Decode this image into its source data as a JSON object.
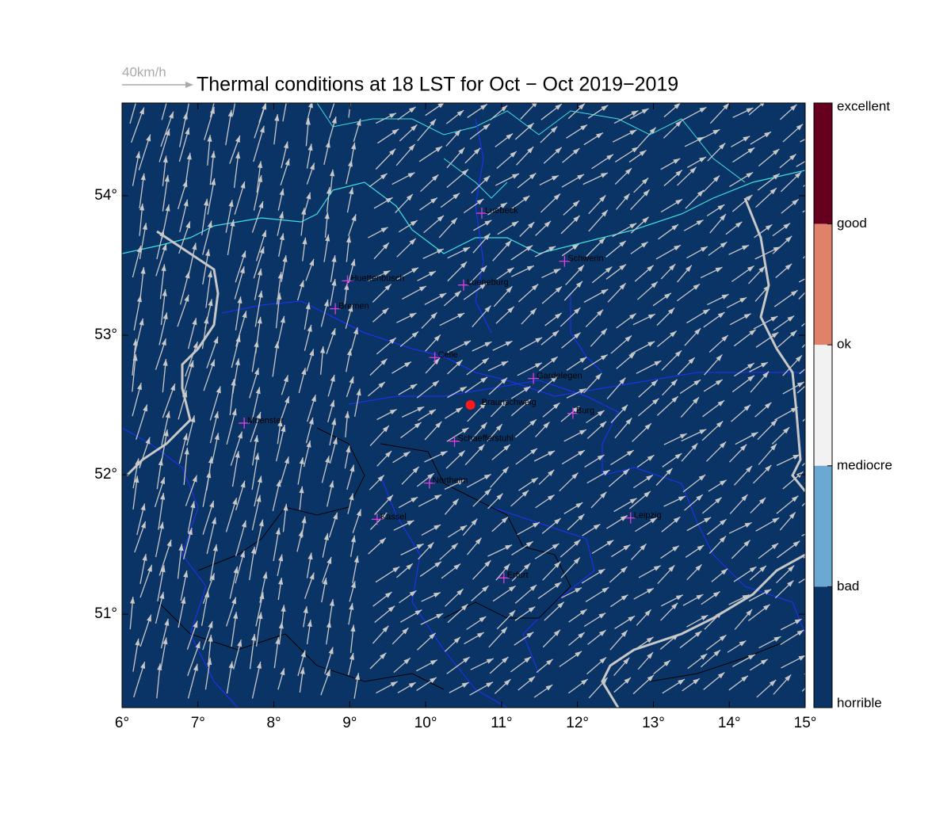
{
  "title": "Thermal conditions at 18 LST for Oct − Oct  2019−2019",
  "wind_scale": {
    "label": "40km/h"
  },
  "map": {
    "background": "#0b3466",
    "xlim": [
      6,
      15
    ],
    "ylim": [
      50.33,
      54.665
    ],
    "xticks": [
      {
        "value": 6,
        "label": "6°"
      },
      {
        "value": 7,
        "label": "7°"
      },
      {
        "value": 8,
        "label": "8°"
      },
      {
        "value": 9,
        "label": "9°"
      },
      {
        "value": 10,
        "label": "10°"
      },
      {
        "value": 11,
        "label": "11°"
      },
      {
        "value": 12,
        "label": "12°"
      },
      {
        "value": 13,
        "label": "13°"
      },
      {
        "value": 14,
        "label": "14°"
      },
      {
        "value": 15,
        "label": "15°"
      }
    ],
    "yticks": [
      {
        "value": 51,
        "label": "51°"
      },
      {
        "value": 52,
        "label": "52°"
      },
      {
        "value": 53,
        "label": "53°"
      },
      {
        "value": 54,
        "label": "54°"
      }
    ]
  },
  "places": [
    {
      "name": "Luebeck",
      "lon": 10.74,
      "lat": 53.875,
      "marker": "cross"
    },
    {
      "name": "Schwerin",
      "lon": 11.83,
      "lat": 53.53,
      "marker": "cross"
    },
    {
      "name": "Huettenbusch",
      "lon": 8.97,
      "lat": 53.39,
      "marker": "cross"
    },
    {
      "name": "Lueneburg",
      "lon": 10.5,
      "lat": 53.36,
      "marker": "cross"
    },
    {
      "name": "Bremen",
      "lon": 8.81,
      "lat": 53.19,
      "marker": "cross"
    },
    {
      "name": "Celle",
      "lon": 10.12,
      "lat": 52.84,
      "marker": "cross"
    },
    {
      "name": "Gardelegen",
      "lon": 11.42,
      "lat": 52.69,
      "marker": "cross"
    },
    {
      "name": "Braunschweig",
      "lon": 10.59,
      "lat": 52.5,
      "marker": "dot"
    },
    {
      "name": "Burg",
      "lon": 11.94,
      "lat": 52.44,
      "marker": "cross"
    },
    {
      "name": "Muenster",
      "lon": 7.61,
      "lat": 52.37,
      "marker": "cross"
    },
    {
      "name": "Schaefferstuhl",
      "lon": 10.38,
      "lat": 52.24,
      "marker": "cross"
    },
    {
      "name": "Northeim",
      "lon": 10.05,
      "lat": 51.94,
      "marker": "cross"
    },
    {
      "name": "Kassel",
      "lon": 9.36,
      "lat": 51.68,
      "marker": "cross"
    },
    {
      "name": "Leipzig",
      "lon": 12.7,
      "lat": 51.69,
      "marker": "cross"
    },
    {
      "name": "Erfurt",
      "lon": 11.03,
      "lat": 51.26,
      "marker": "cross"
    }
  ],
  "colorbar": {
    "labels": [
      "excellent",
      "good",
      "ok",
      "mediocre",
      "bad",
      "horrible"
    ],
    "colors": [
      "#67001f",
      "#e0826a",
      "#f2f2f2",
      "#6ca9d2",
      "#0b3466"
    ]
  }
}
